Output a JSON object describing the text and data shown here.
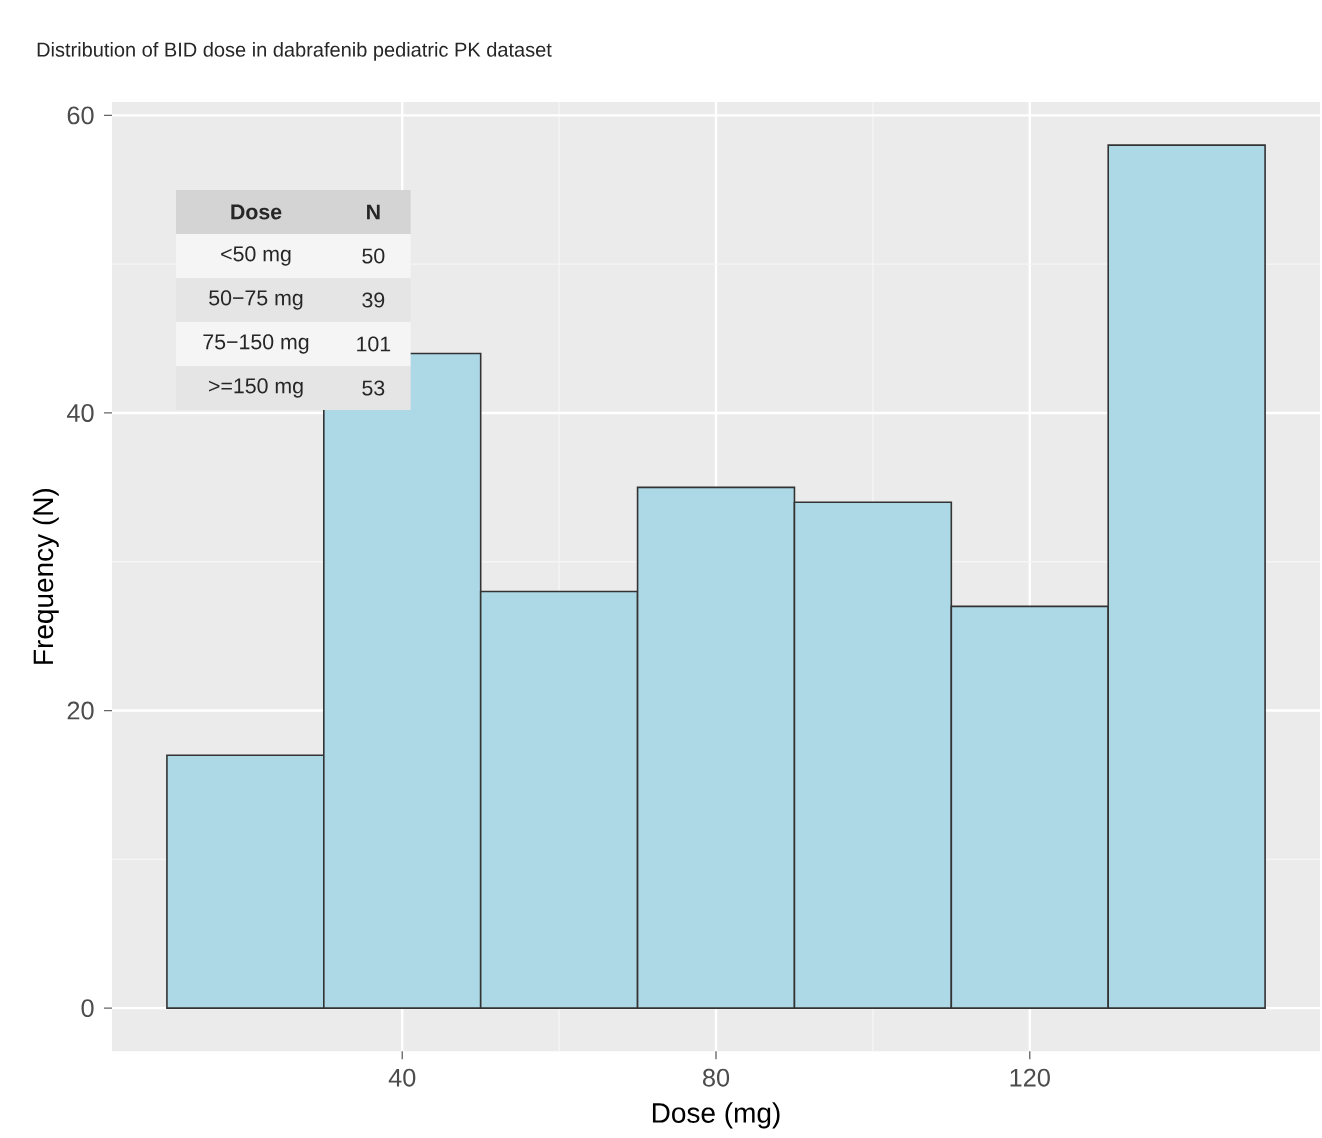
{
  "chart_data": {
    "type": "histogram",
    "title": "Distribution of BID dose in dabrafenib pediatric PK dataset",
    "xlabel": "Dose (mg)",
    "ylabel": "Frequency (N)",
    "bins": [
      10,
      30,
      50,
      70,
      90,
      110,
      130,
      150
    ],
    "values": [
      17,
      44,
      28,
      35,
      34,
      27,
      58
    ],
    "color": "#add8e6",
    "xlim": [
      3,
      157
    ],
    "xticks": [
      40,
      80,
      120
    ],
    "ylim": [
      -2.9,
      60.9
    ],
    "yticks": [
      0,
      20,
      40,
      60
    ],
    "grid": true,
    "annotations": [
      "Dose",
      "N",
      "<50 mg",
      "50",
      "50−75 mg",
      "39",
      "75−150 mg",
      "101",
      ">=150 mg",
      "53"
    ]
  }
}
